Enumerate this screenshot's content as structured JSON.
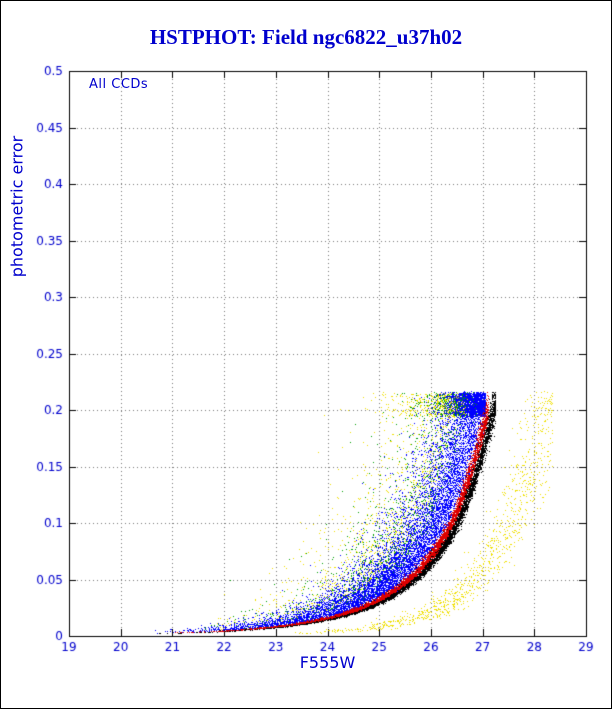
{
  "chart_data": {
    "type": "scatter",
    "title": "HSTPHOT: Field ngc6822_u37h02",
    "annotation": "All CCDs",
    "xlabel": "F555W",
    "ylabel": "photometric error",
    "xlim": [
      19,
      29
    ],
    "ylim": [
      0,
      0.5
    ],
    "x_ticks": [
      19,
      20,
      21,
      22,
      23,
      24,
      25,
      26,
      27,
      28,
      29
    ],
    "x_tick_labels": [
      "19",
      "20",
      "21",
      "22",
      "23",
      "24",
      "25",
      "26",
      "27",
      "28",
      "29"
    ],
    "y_ticks": [
      0,
      0.05,
      0.1,
      0.15,
      0.2,
      0.25,
      0.3,
      0.35,
      0.4,
      0.45,
      0.5
    ],
    "y_tick_labels": [
      "0",
      "0.05",
      "0.1",
      "0.15",
      "0.2",
      "0.25",
      "0.3",
      "0.35",
      "0.4",
      "0.45",
      "0.5"
    ],
    "grid": "dotted",
    "grid_color": "#777777",
    "axis_color": "#000000",
    "label_color": "#0000cd",
    "error_cap": 0.2165,
    "cap_band": 0.215,
    "main_curve": [
      [
        20.3,
        0.002
      ],
      [
        21,
        0.003
      ],
      [
        22,
        0.005
      ],
      [
        23,
        0.009
      ],
      [
        24,
        0.017
      ],
      [
        24.5,
        0.024
      ],
      [
        25,
        0.035
      ],
      [
        25.5,
        0.051
      ],
      [
        26,
        0.077
      ],
      [
        26.3,
        0.1
      ],
      [
        26.7,
        0.15
      ],
      [
        27.0,
        0.2
      ],
      [
        27.2,
        0.215
      ]
    ],
    "secondary_curve": [
      [
        23.3,
        0.0025
      ],
      [
        24,
        0.004
      ],
      [
        25,
        0.009
      ],
      [
        26,
        0.022
      ],
      [
        26.5,
        0.035
      ],
      [
        27,
        0.058
      ],
      [
        27.5,
        0.1
      ],
      [
        28,
        0.165
      ],
      [
        28.3,
        0.2
      ]
    ],
    "faint_weight": 0.3,
    "series": [
      {
        "name": "ccd-yellow",
        "color": "#f0e000",
        "n": 1700,
        "mag_offset": -0.5,
        "sigma_up": 0.8,
        "sigma": 0.08,
        "mag_range": [
          20.8,
          26.7
        ]
      },
      {
        "name": "ccd-green",
        "color": "#00a000",
        "n": 1700,
        "mag_offset": -0.3,
        "sigma_up": 0.6,
        "sigma": 0.07,
        "mag_range": [
          20.8,
          26.9
        ]
      },
      {
        "name": "ccd-blue",
        "color": "#0000ff",
        "n": 9000,
        "mag_offset": 0.0,
        "sigma_up": 0.42,
        "sigma": 0.06,
        "mag_range": [
          20.3,
          27.05
        ]
      },
      {
        "name": "ccd-black",
        "color": "#000000",
        "n": 5200,
        "mag_offset": 0.25,
        "sigma_up": 0.06,
        "sigma": 0.03,
        "mag_range": [
          20.3,
          27.25
        ]
      },
      {
        "name": "ccd-red",
        "color": "#dd0000",
        "n": 3600,
        "mag_offset": 0.13,
        "sigma_up": 0.05,
        "sigma": 0.02,
        "mag_range": [
          20.3,
          27.1
        ]
      }
    ],
    "secondary_branch": {
      "name": "ccd-yellow-secondary",
      "color": "#f0e000",
      "n": 1000,
      "sigma": 0.22,
      "mag_range": [
        23.3,
        28.35
      ],
      "faint_weight": 0.45
    }
  }
}
